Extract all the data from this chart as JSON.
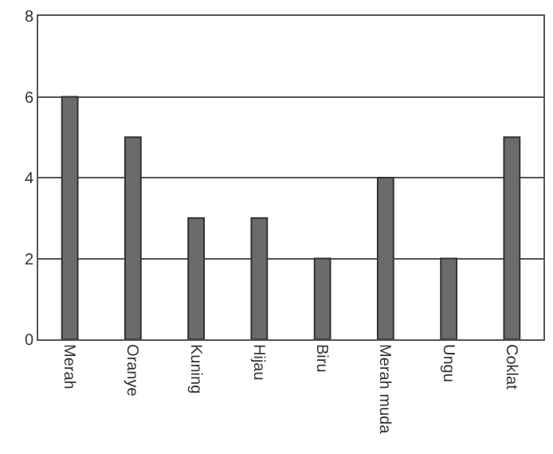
{
  "chart_data": {
    "type": "bar",
    "categories": [
      "Merah",
      "Oranye",
      "Kuning",
      "Hijau",
      "Biru",
      "Merah muda",
      "Ungu",
      "Coklat"
    ],
    "values": [
      6,
      5,
      3,
      3,
      2,
      4,
      2,
      5
    ],
    "color": "#6b6b6b",
    "ylim": [
      0,
      8
    ],
    "yticks": [
      0,
      2,
      4,
      6,
      8
    ],
    "grid": "y",
    "legend": false
  }
}
